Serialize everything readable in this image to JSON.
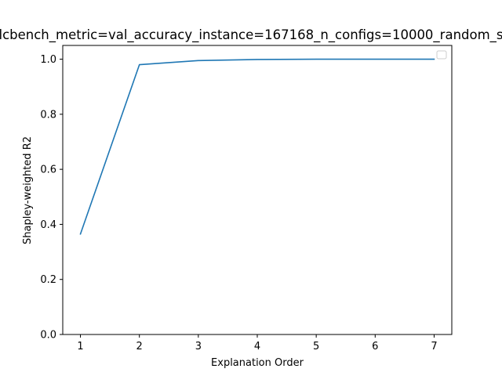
{
  "chart_data": {
    "type": "line",
    "title": "lcbench_metric=val_accuracy_instance=167168_n_configs=10000_random_s",
    "xlabel": "Explanation Order",
    "ylabel": "Shapley-weighted R2",
    "x": [
      1,
      2,
      3,
      4,
      5,
      6,
      7
    ],
    "series": [
      {
        "values": [
          0.365,
          0.98,
          0.995,
          0.999,
          1.0,
          1.0,
          1.0
        ]
      }
    ],
    "xlim": [
      0.7,
      7.3
    ],
    "ylim": [
      0.0,
      1.05
    ],
    "xticks": [
      "1",
      "2",
      "3",
      "4",
      "5",
      "6",
      "7"
    ],
    "yticks": [
      "0.0",
      "0.2",
      "0.4",
      "0.6",
      "0.8",
      "1.0"
    ],
    "grid": false,
    "legend": "top-right",
    "colors": {
      "line": "#1f77b4",
      "axes": "#000000",
      "background": "#ffffff"
    }
  }
}
